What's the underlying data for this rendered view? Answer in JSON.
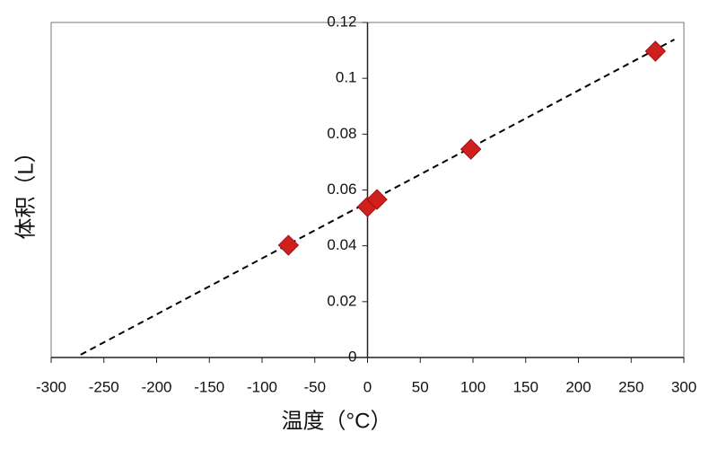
{
  "chart_data": {
    "type": "scatter",
    "xlabel": "温度（°C）",
    "ylabel": "体积（L）",
    "series": [
      {
        "color": "#d01f1f",
        "x": [
          -75,
          0,
          9,
          98,
          273
        ],
        "values": [
          0.0402,
          0.054,
          0.0566,
          0.0746,
          0.1097
        ]
      }
    ],
    "trendline": {
      "color": "#000000",
      "x": [
        -272,
        291
      ],
      "values": [
        0.001,
        0.1139
      ]
    },
    "xlim": [
      -300,
      300
    ],
    "xticks": [
      -300,
      -250,
      -200,
      -150,
      -100,
      -50,
      0,
      50,
      100,
      150,
      200,
      250,
      300
    ],
    "ylim": [
      0,
      0.12
    ],
    "yticks": [
      0,
      0.02,
      0.04,
      0.06,
      0.08,
      0.1,
      0.12
    ]
  }
}
